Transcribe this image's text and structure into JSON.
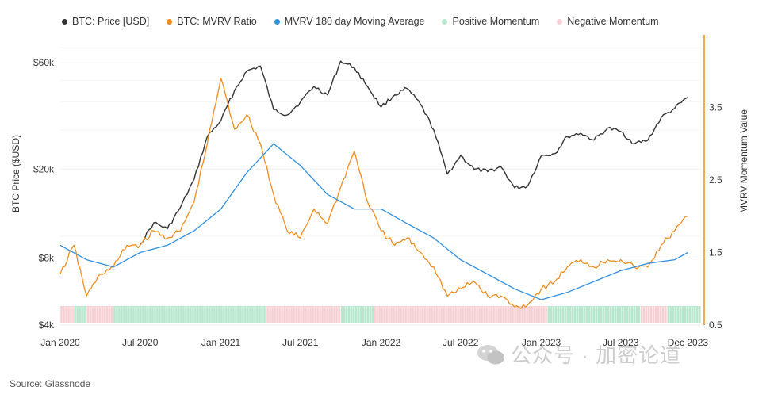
{
  "legend": [
    {
      "label": "BTC: Price [USD]",
      "color": "#333333"
    },
    {
      "label": "BTC: MVRV Ratio",
      "color": "#f08c1a"
    },
    {
      "label": "MVRV 180 day Moving Average",
      "color": "#2f8fe0"
    },
    {
      "label": "Positive Momentum",
      "color": "#b6e6cc"
    },
    {
      "label": "Negative Momentum",
      "color": "#f6cfd3"
    }
  ],
  "source": "Source: Glassnode",
  "watermark": "公众号 · 加密论道",
  "chart_data": {
    "type": "line",
    "xlabel": "",
    "ylabel_left": "BTC Price ($USD)",
    "ylabel_right": "MVRV Momentum Value",
    "x_ticks": [
      "Jan 2020",
      "Jul 2020",
      "Jan 2021",
      "Jul 2021",
      "Jan 2022",
      "Jul 2022",
      "Jan 2023",
      "Jul 2023",
      "Dec 2023"
    ],
    "y_left_ticks": [
      "$60k",
      "$20k",
      "$8k",
      "$4k"
    ],
    "y_left_scale": "log",
    "y_left_range": [
      4000,
      80000
    ],
    "y_right_ticks": [
      "3.5",
      "2.5",
      "1.5",
      "0.5"
    ],
    "y_right_range": [
      0.5,
      4.5
    ],
    "series": [
      {
        "name": "BTC: Price [USD]",
        "color": "#333333",
        "axis": "left",
        "x": [
          "2020-07-01",
          "2020-08-01",
          "2020-09-01",
          "2020-10-01",
          "2020-11-01",
          "2020-12-01",
          "2021-01-01",
          "2021-02-01",
          "2021-03-01",
          "2021-04-01",
          "2021-05-01",
          "2021-06-01",
          "2021-07-01",
          "2021-08-01",
          "2021-09-01",
          "2021-10-01",
          "2021-11-01",
          "2021-12-01",
          "2022-01-01",
          "2022-02-01",
          "2022-03-01",
          "2022-04-01",
          "2022-05-01",
          "2022-06-01",
          "2022-07-01",
          "2022-08-01",
          "2022-09-01",
          "2022-10-01",
          "2022-11-01",
          "2022-12-01",
          "2023-01-01",
          "2023-02-01",
          "2023-03-01",
          "2023-04-01",
          "2023-05-01",
          "2023-06-01",
          "2023-07-01",
          "2023-08-01",
          "2023-09-01",
          "2023-10-01",
          "2023-11-01",
          "2023-12-01"
        ],
        "values": [
          9200,
          11500,
          10800,
          13500,
          18000,
          28000,
          33000,
          45000,
          55000,
          58000,
          37000,
          35000,
          40000,
          47000,
          43000,
          61000,
          57000,
          47000,
          38000,
          43000,
          46000,
          39000,
          30000,
          19000,
          23000,
          20000,
          19500,
          20500,
          16500,
          16800,
          23000,
          23500,
          28000,
          29000,
          27000,
          30500,
          29500,
          26000,
          27000,
          34000,
          37500,
          42000
        ]
      },
      {
        "name": "BTC: MVRV Ratio",
        "color": "#f08c1a",
        "axis": "right",
        "x": [
          "2020-01-01",
          "2020-02-01",
          "2020-03-01",
          "2020-04-01",
          "2020-05-01",
          "2020-06-01",
          "2020-07-01",
          "2020-08-01",
          "2020-09-01",
          "2020-10-01",
          "2020-11-01",
          "2020-12-01",
          "2021-01-01",
          "2021-02-01",
          "2021-03-01",
          "2021-04-01",
          "2021-05-01",
          "2021-06-01",
          "2021-07-01",
          "2021-08-01",
          "2021-09-01",
          "2021-10-01",
          "2021-11-01",
          "2021-12-01",
          "2022-01-01",
          "2022-02-01",
          "2022-03-01",
          "2022-04-01",
          "2022-05-01",
          "2022-06-01",
          "2022-07-01",
          "2022-08-01",
          "2022-09-01",
          "2022-10-01",
          "2022-11-01",
          "2022-12-01",
          "2023-01-01",
          "2023-02-01",
          "2023-03-01",
          "2023-04-01",
          "2023-05-01",
          "2023-06-01",
          "2023-07-01",
          "2023-08-01",
          "2023-09-01",
          "2023-10-01",
          "2023-11-01",
          "2023-12-01"
        ],
        "values": [
          1.2,
          1.6,
          0.9,
          1.2,
          1.3,
          1.6,
          1.6,
          1.8,
          1.7,
          1.8,
          2.2,
          3.0,
          3.9,
          3.2,
          3.4,
          3.0,
          2.3,
          1.8,
          1.7,
          2.1,
          1.9,
          2.4,
          2.9,
          2.2,
          1.8,
          1.6,
          1.7,
          1.5,
          1.3,
          0.9,
          1.0,
          1.1,
          0.9,
          0.9,
          0.75,
          0.78,
          1.0,
          1.1,
          1.3,
          1.4,
          1.3,
          1.4,
          1.4,
          1.3,
          1.3,
          1.6,
          1.8,
          2.0
        ]
      },
      {
        "name": "MVRV 180 day Moving Average",
        "color": "#2f8fe0",
        "axis": "right",
        "x": [
          "2020-01-01",
          "2020-03-01",
          "2020-05-01",
          "2020-07-01",
          "2020-09-01",
          "2020-11-01",
          "2021-01-01",
          "2021-03-01",
          "2021-05-01",
          "2021-07-01",
          "2021-09-01",
          "2021-11-01",
          "2022-01-01",
          "2022-03-01",
          "2022-05-01",
          "2022-07-01",
          "2022-09-01",
          "2022-11-01",
          "2023-01-01",
          "2023-03-01",
          "2023-05-01",
          "2023-07-01",
          "2023-09-01",
          "2023-11-01",
          "2023-12-01"
        ],
        "values": [
          1.6,
          1.4,
          1.3,
          1.5,
          1.6,
          1.8,
          2.1,
          2.6,
          3.0,
          2.7,
          2.3,
          2.1,
          2.1,
          1.9,
          1.7,
          1.4,
          1.2,
          1.0,
          0.85,
          0.95,
          1.1,
          1.25,
          1.35,
          1.4,
          1.5
        ]
      }
    ],
    "momentum": [
      {
        "start": "2020-01-01",
        "end": "2020-02-01",
        "state": "negative"
      },
      {
        "start": "2020-02-01",
        "end": "2020-03-01",
        "state": "positive"
      },
      {
        "start": "2020-03-01",
        "end": "2020-05-01",
        "state": "negative"
      },
      {
        "start": "2020-05-01",
        "end": "2021-04-15",
        "state": "positive"
      },
      {
        "start": "2021-04-15",
        "end": "2021-10-01",
        "state": "negative"
      },
      {
        "start": "2021-10-01",
        "end": "2021-12-15",
        "state": "positive"
      },
      {
        "start": "2021-12-15",
        "end": "2023-01-15",
        "state": "negative"
      },
      {
        "start": "2023-01-15",
        "end": "2023-08-15",
        "state": "positive"
      },
      {
        "start": "2023-08-15",
        "end": "2023-10-15",
        "state": "negative"
      },
      {
        "start": "2023-10-15",
        "end": "2023-12-31",
        "state": "positive"
      }
    ],
    "grid": true,
    "legend_position": "top-left"
  }
}
